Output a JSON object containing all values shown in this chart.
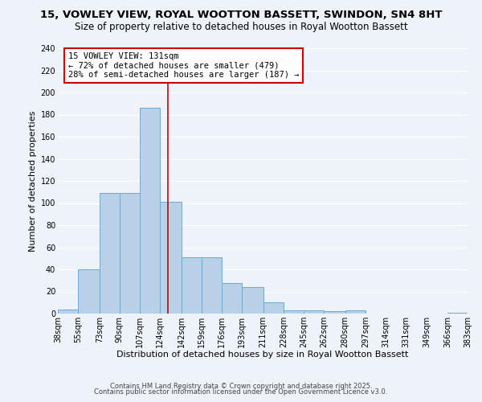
{
  "title": "15, VOWLEY VIEW, ROYAL WOOTTON BASSETT, SWINDON, SN4 8HT",
  "subtitle": "Size of property relative to detached houses in Royal Wootton Bassett",
  "xlabel": "Distribution of detached houses by size in Royal Wootton Bassett",
  "ylabel": "Number of detached properties",
  "bar_edges": [
    38,
    55,
    73,
    90,
    107,
    124,
    142,
    159,
    176,
    193,
    211,
    228,
    245,
    262,
    280,
    297,
    314,
    331,
    349,
    366,
    383
  ],
  "bar_heights": [
    4,
    40,
    109,
    109,
    186,
    101,
    51,
    51,
    28,
    24,
    10,
    3,
    3,
    2,
    3,
    0,
    0,
    0,
    0,
    1
  ],
  "bar_color": "#b8d0e8",
  "bar_edge_color": "#6aaad4",
  "property_line_x": 131,
  "property_line_color": "#cc0000",
  "ylim": [
    0,
    240
  ],
  "yticks": [
    0,
    20,
    40,
    60,
    80,
    100,
    120,
    140,
    160,
    180,
    200,
    220,
    240
  ],
  "xtick_labels": [
    "38sqm",
    "55sqm",
    "73sqm",
    "90sqm",
    "107sqm",
    "124sqm",
    "142sqm",
    "159sqm",
    "176sqm",
    "193sqm",
    "211sqm",
    "228sqm",
    "245sqm",
    "262sqm",
    "280sqm",
    "297sqm",
    "314sqm",
    "331sqm",
    "349sqm",
    "366sqm",
    "383sqm"
  ],
  "annotation_title": "15 VOWLEY VIEW: 131sqm",
  "annotation_line1": "← 72% of detached houses are smaller (479)",
  "annotation_line2": "28% of semi-detached houses are larger (187) →",
  "annotation_box_color": "#ffffff",
  "annotation_box_edge_color": "#cc0000",
  "footer1": "Contains HM Land Registry data © Crown copyright and database right 2025.",
  "footer2": "Contains public sector information licensed under the Open Government Licence v3.0.",
  "background_color": "#eef2f9",
  "grid_color": "#ffffff",
  "title_fontsize": 9.5,
  "subtitle_fontsize": 8.5,
  "axis_label_fontsize": 8,
  "tick_fontsize": 7,
  "annotation_fontsize": 7.5,
  "footer_fontsize": 6
}
